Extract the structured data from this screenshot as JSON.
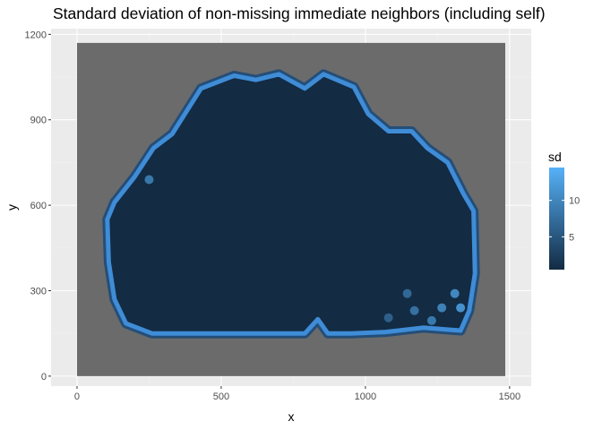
{
  "chart_data": {
    "type": "heatmap",
    "title": "Standard deviation of non-missing immediate neighbors (including self)",
    "xlabel": "x",
    "ylabel": "y",
    "xlim": [
      -90,
      1575
    ],
    "ylim": [
      -35,
      1220
    ],
    "x_ticks": [
      0,
      500,
      1000,
      1500
    ],
    "y_ticks": [
      0,
      300,
      600,
      900,
      1200
    ],
    "x_tick_labels": [
      "0",
      "500",
      "1000",
      "1500"
    ],
    "y_tick_labels": [
      "0",
      "300",
      "600",
      "900",
      "1200"
    ],
    "background_rect": {
      "x": [
        0,
        1485
      ],
      "y": [
        0,
        1170
      ],
      "color": "#6b6b6b"
    },
    "regions": [
      {
        "label": "tissue interior",
        "sd": 1.5,
        "color": "#132b43",
        "outline_sd": 14,
        "outline_color": "#3f8cd7",
        "polygon": [
          [
            330,
            850
          ],
          [
            430,
            1010
          ],
          [
            545,
            1055
          ],
          [
            620,
            1040
          ],
          [
            700,
            1060
          ],
          [
            790,
            1010
          ],
          [
            855,
            1060
          ],
          [
            960,
            1015
          ],
          [
            1010,
            920
          ],
          [
            1080,
            860
          ],
          [
            1160,
            860
          ],
          [
            1215,
            800
          ],
          [
            1285,
            750
          ],
          [
            1340,
            640
          ],
          [
            1375,
            580
          ],
          [
            1380,
            360
          ],
          [
            1360,
            230
          ],
          [
            1330,
            160
          ],
          [
            1200,
            170
          ],
          [
            1070,
            155
          ],
          [
            950,
            150
          ],
          [
            870,
            150
          ],
          [
            835,
            200
          ],
          [
            790,
            150
          ],
          [
            730,
            150
          ],
          [
            560,
            150
          ],
          [
            360,
            150
          ],
          [
            260,
            150
          ],
          [
            170,
            185
          ],
          [
            130,
            270
          ],
          [
            110,
            400
          ],
          [
            105,
            550
          ],
          [
            130,
            610
          ],
          [
            200,
            700
          ],
          [
            265,
            800
          ]
        ]
      }
    ],
    "hotspots": [
      {
        "x": 250,
        "y": 690,
        "sd": 10
      },
      {
        "x": 1145,
        "y": 290,
        "sd": 8
      },
      {
        "x": 1170,
        "y": 230,
        "sd": 9
      },
      {
        "x": 1080,
        "y": 205,
        "sd": 7
      },
      {
        "x": 1265,
        "y": 240,
        "sd": 11
      },
      {
        "x": 1310,
        "y": 290,
        "sd": 12
      },
      {
        "x": 1330,
        "y": 240,
        "sd": 13
      },
      {
        "x": 1230,
        "y": 195,
        "sd": 10
      }
    ],
    "legend": {
      "title": "sd",
      "min": 0.5,
      "max": 14.5,
      "ticks": [
        5,
        10
      ],
      "tick_labels": [
        "5",
        "10"
      ],
      "low_color": "#132b43",
      "high_color": "#56b1f7",
      "position": "right"
    },
    "panel_background": "#ebebeb",
    "grid": true
  }
}
